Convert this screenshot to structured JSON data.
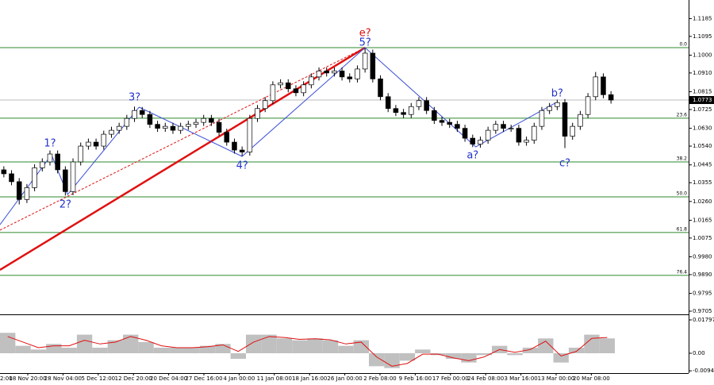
{
  "chart_data": [
    {
      "type": "candlestick",
      "ylim": [
        0.9693,
        1.1279
      ],
      "yticks": [
        {
          "value": 1.1185,
          "label": "1.1185"
        },
        {
          "value": 1.1095,
          "label": "1.1095"
        },
        {
          "value": 1.1,
          "label": "1.1000"
        },
        {
          "value": 1.091,
          "label": "1.0910"
        },
        1.0815,
        1.0725,
        {
          "value": 1.063,
          "label": "1.0630"
        },
        {
          "value": 1.054,
          "label": "1.0540"
        },
        1.0445,
        1.0355,
        {
          "value": 1.026,
          "label": "1.0260"
        },
        1.0165,
        1.0075,
        {
          "value": 0.998,
          "label": "0.9980"
        },
        {
          "value": 0.989,
          "label": "0.9890"
        },
        0.9795,
        0.9705
      ],
      "x_labels": [
        "2:00",
        "18 Nov 20:00",
        "28 Nov 04:00",
        "5 Dec 12:00",
        "12 Dec 20:00",
        "20 Dec 04:00",
        "27 Dec 16:00",
        "4 Jan 00:00",
        "11 Jan 08:00",
        "18 Jan 16:00",
        "26 Jan 00:00",
        "2 Feb 08:00",
        "9 Feb 16:00",
        "17 Feb 00:00",
        "24 Feb 08:00",
        "3 Mar 16:00",
        "13 Mar 00:00",
        "20 Mar 08:00"
      ],
      "open": [
        1.042,
        1.04,
        1.036,
        1.027,
        1.033,
        1.043,
        1.046,
        1.05,
        1.042,
        1.031,
        1.046,
        1.054,
        1.056,
        1.054,
        1.06,
        1.062,
        1.064,
        1.068,
        1.072,
        1.07,
        1.065,
        1.063,
        1.064,
        1.062,
        1.064,
        1.065,
        1.066,
        1.068,
        1.066,
        1.061,
        1.056,
        1.052,
        1.051,
        1.068,
        1.073,
        1.077,
        1.085,
        1.086,
        1.083,
        1.081,
        1.085,
        1.089,
        1.092,
        1.091,
        1.092,
        1.089,
        1.088,
        1.093,
        1.101,
        1.088,
        1.079,
        1.073,
        1.071,
        1.07,
        1.074,
        1.077,
        1.072,
        1.067,
        1.066,
        1.065,
        1.063,
        1.058,
        1.055,
        1.057,
        1.062,
        1.065,
        1.063,
        1.063,
        1.056,
        1.057,
        1.064,
        1.072,
        1.074,
        1.076,
        1.059,
        1.064,
        1.07,
        1.079,
        1.089,
        1.08
      ],
      "high": [
        1.0438,
        1.0418,
        1.0378,
        1.0348,
        1.0448,
        1.0478,
        1.0518,
        1.0518,
        1.0438,
        1.0478,
        1.0558,
        1.0578,
        1.0578,
        1.0618,
        1.0638,
        1.0658,
        1.0698,
        1.074,
        1.0738,
        1.0718,
        1.0668,
        1.0658,
        1.0658,
        1.0658,
        1.0668,
        1.0678,
        1.0698,
        1.0698,
        1.0678,
        1.0628,
        1.0578,
        1.0538,
        1.0698,
        1.0748,
        1.0788,
        1.0868,
        1.0878,
        1.0878,
        1.0848,
        1.0868,
        1.0908,
        1.0938,
        1.0938,
        1.0938,
        1.0938,
        1.0908,
        1.0948,
        1.1035,
        1.1028,
        1.0898,
        1.0808,
        1.0748,
        1.0728,
        1.0758,
        1.0788,
        1.0788,
        1.0738,
        1.0688,
        1.0678,
        1.0668,
        1.0648,
        1.0598,
        1.0588,
        1.0638,
        1.0668,
        1.0668,
        1.0648,
        1.0648,
        1.0588,
        1.0658,
        1.0738,
        1.0758,
        1.0775,
        1.0778,
        1.0658,
        1.0718,
        1.0808,
        1.0915,
        1.0908,
        1.0818
      ],
      "low": [
        1.0382,
        1.0342,
        1.0245,
        1.0252,
        1.0312,
        1.0412,
        1.0442,
        1.0402,
        1.029,
        1.0292,
        1.0442,
        1.0522,
        1.0522,
        1.0522,
        1.0582,
        1.0602,
        1.0622,
        1.0662,
        1.0682,
        1.0632,
        1.0612,
        1.0612,
        1.0602,
        1.0602,
        1.0622,
        1.0632,
        1.0642,
        1.0642,
        1.0592,
        1.0542,
        1.0502,
        1.049,
        1.0492,
        1.0662,
        1.0712,
        1.0752,
        1.0832,
        1.0812,
        1.0792,
        1.0792,
        1.0832,
        1.0872,
        1.0892,
        1.0892,
        1.0872,
        1.0862,
        1.0862,
        1.0912,
        1.0862,
        1.0772,
        1.0712,
        1.0692,
        1.0682,
        1.0682,
        1.0722,
        1.0702,
        1.0652,
        1.0642,
        1.0632,
        1.0612,
        1.0562,
        1.0535,
        1.0532,
        1.0552,
        1.0602,
        1.0612,
        1.0612,
        1.0542,
        1.0542,
        1.0552,
        1.0622,
        1.0702,
        1.0722,
        1.053,
        1.0572,
        1.0622,
        1.0682,
        1.0772,
        1.0782,
        1.0755
      ],
      "close": [
        1.04,
        1.036,
        1.027,
        1.033,
        1.043,
        1.046,
        1.05,
        1.042,
        1.031,
        1.046,
        1.054,
        1.056,
        1.054,
        1.06,
        1.062,
        1.064,
        1.068,
        1.072,
        1.07,
        1.065,
        1.063,
        1.064,
        1.062,
        1.064,
        1.065,
        1.066,
        1.068,
        1.066,
        1.061,
        1.056,
        1.052,
        1.051,
        1.068,
        1.073,
        1.077,
        1.085,
        1.086,
        1.083,
        1.081,
        1.085,
        1.089,
        1.092,
        1.091,
        1.092,
        1.089,
        1.088,
        1.093,
        1.101,
        1.088,
        1.079,
        1.073,
        1.071,
        1.07,
        1.074,
        1.077,
        1.072,
        1.067,
        1.066,
        1.065,
        1.063,
        1.058,
        1.055,
        1.057,
        1.062,
        1.065,
        1.063,
        1.063,
        1.056,
        1.057,
        1.064,
        1.072,
        1.074,
        1.076,
        1.059,
        1.064,
        1.07,
        1.079,
        1.089,
        1.08,
        1.0773
      ],
      "last_price": 1.0773,
      "fib_color": "#2e8b2e",
      "fib_levels": [
        {
          "name": "0.0",
          "value": 1.1038
        },
        {
          "name": "23.6",
          "value": 1.0681
        },
        {
          "name": "38.2",
          "value": 1.046
        },
        {
          "name": "50.0",
          "value": 1.0283
        },
        {
          "name": "61.8",
          "value": 1.0103
        },
        {
          "name": "76.4",
          "value": 0.9886
        }
      ],
      "wave": {
        "color": "#3a4fd8",
        "x": [
          -0.5,
          6.2,
          8.3,
          17.6,
          31,
          47,
          61.4,
          71.7
        ],
        "y": [
          1.0143,
          1.0496,
          1.0295,
          1.0737,
          1.0488,
          1.1038,
          1.0536,
          1.0757
        ]
      },
      "trend_lines": [
        {
          "color": "#e01010",
          "dashed": false,
          "x": [
            -0.5,
            47
          ],
          "y": [
            0.9914,
            1.1038
          ]
        },
        {
          "color": "#e01010",
          "dashed": true,
          "x": [
            -0.5,
            47
          ],
          "y": [
            1.0115,
            1.1038
          ]
        }
      ],
      "annotations": [
        {
          "text": "e?",
          "color": "#e01010",
          "x": 47,
          "y": 1.1111
        },
        {
          "text": "5?",
          "color": "#2233cc",
          "x": 47,
          "y": 1.1062
        },
        {
          "text": "1?",
          "color": "#2233cc",
          "x": 6,
          "y": 1.0552
        },
        {
          "text": "2?",
          "color": "#2233cc",
          "x": 8,
          "y": 1.0243
        },
        {
          "text": "3?",
          "color": "#2233cc",
          "x": 17,
          "y": 1.0785
        },
        {
          "text": "4?",
          "color": "#2233cc",
          "x": 31,
          "y": 1.044
        },
        {
          "text": "a?",
          "color": "#2233cc",
          "x": 61,
          "y": 1.0492
        },
        {
          "text": "b?",
          "color": "#2233cc",
          "x": 72,
          "y": 1.0805
        },
        {
          "text": "c?",
          "color": "#2233cc",
          "x": 73,
          "y": 1.0452
        }
      ]
    },
    {
      "type": "macd",
      "ylim": [
        -0.0107,
        0.0201
      ],
      "yticks": [
        0.01797,
        {
          "value": 0,
          "label": "0.00"
        },
        -0.00948
      ],
      "color": "#c0c0c0",
      "signal_color": "#e01010",
      "values": [
        0.011,
        0.004,
        0.002,
        0.005,
        0.003,
        0.01,
        0.003,
        0.007,
        0.01,
        0.006,
        0.003,
        0.003,
        0.003,
        0.004,
        0.005,
        -0.003,
        0.01,
        0.01,
        0.008,
        0.007,
        0.008,
        0.007,
        0.004,
        0.007,
        -0.007,
        -0.008,
        -0.004,
        0.002,
        -0.001,
        -0.003,
        -0.005,
        -0.001,
        0.004,
        -0.001,
        0.003,
        0.008,
        -0.005,
        0.003,
        0.01,
        0.008
      ],
      "signal": [
        0.009,
        0.006,
        0.003,
        0.004,
        0.004,
        0.007,
        0.005,
        0.006,
        0.009,
        0.007,
        0.004,
        0.003,
        0.003,
        0.0035,
        0.0045,
        0.001,
        0.006,
        0.009,
        0.0085,
        0.0075,
        0.0078,
        0.0072,
        0.005,
        0.006,
        -0.002,
        -0.007,
        -0.0055,
        -0.0005,
        -0.0005,
        -0.0025,
        -0.004,
        -0.002,
        0.002,
        0.0005,
        0.002,
        0.0065,
        -0.0015,
        0.001,
        0.008,
        0.0085
      ]
    }
  ]
}
